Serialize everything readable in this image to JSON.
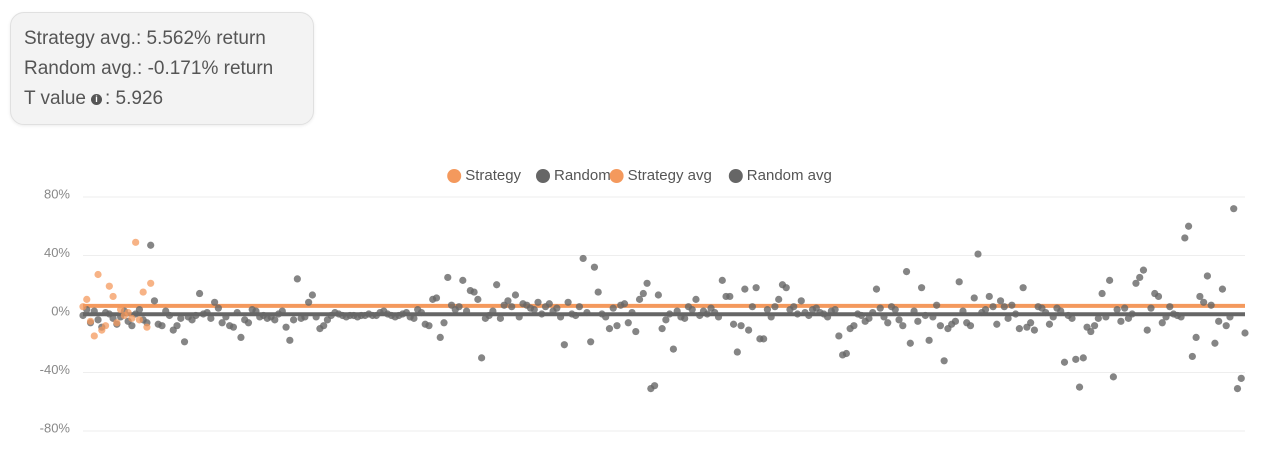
{
  "summary": {
    "strategy_avg": "Strategy avg.: 5.562% return",
    "random_avg": "Random avg.: -0.171% return",
    "t_value_label": "T value",
    "t_value": ": 5.926"
  },
  "chart_data": {
    "type": "scatter",
    "ylim": [
      -80,
      80
    ],
    "yticks": [
      {
        "value": -80,
        "label": "-80%"
      },
      {
        "value": -40,
        "label": "-40%"
      },
      {
        "value": 0,
        "label": "0%"
      },
      {
        "value": 40,
        "label": "40%"
      },
      {
        "value": 80,
        "label": "80%"
      }
    ],
    "grid": true,
    "legend": "top",
    "series": [
      {
        "name": "Strategy",
        "color": "#f4995d",
        "values": [
          5,
          10,
          -5,
          -15,
          27,
          -11,
          -8,
          19,
          12,
          -6,
          3,
          -1,
          1,
          -3,
          49,
          -4,
          15,
          -9,
          21
        ]
      },
      {
        "name": "Random",
        "color": "#666666",
        "values": [
          -1,
          3,
          -6,
          2,
          -4,
          -9,
          1,
          0,
          -3,
          -7,
          -2,
          2,
          -5,
          -8,
          0,
          3,
          -4,
          -6,
          47,
          9,
          -7,
          -8,
          2,
          -1,
          -11,
          -8,
          -3,
          -19,
          -2,
          -4,
          -1,
          14,
          0,
          1,
          -3,
          8,
          4,
          -6,
          -2,
          -8,
          -9,
          1,
          -16,
          -4,
          -6,
          3,
          2,
          -2,
          -1,
          -3,
          -2,
          -4,
          0,
          2,
          -9,
          -18,
          -4,
          24,
          -3,
          -2,
          8,
          13,
          -2,
          -10,
          -8,
          -4,
          -1,
          1,
          0,
          -1,
          -2,
          -1,
          -1,
          -2,
          -1,
          -1,
          0,
          -1,
          -1,
          1,
          2,
          0,
          -1,
          -2,
          -1,
          0,
          1,
          -2,
          -3,
          3,
          1,
          -7,
          -8,
          10,
          11,
          -16,
          -6,
          25,
          6,
          3,
          5,
          23,
          2,
          16,
          15,
          10,
          -30,
          -3,
          -1,
          2,
          20,
          -3,
          6,
          9,
          5,
          13,
          -2,
          7,
          6,
          4,
          3,
          8,
          0,
          5,
          7,
          2,
          4,
          -2,
          -21,
          8,
          0,
          -1,
          5,
          38,
          1,
          -19,
          32,
          15,
          0,
          -2,
          -10,
          4,
          -8,
          6,
          7,
          -6,
          1,
          -12,
          10,
          14,
          21,
          -51,
          -49,
          13,
          -10,
          -4,
          0,
          -24,
          2,
          -2,
          -3,
          5,
          3,
          10,
          -1,
          2,
          0,
          4,
          1,
          -2,
          23,
          12,
          12,
          -7,
          -26,
          -8,
          17,
          -11,
          5,
          18,
          -17,
          -17,
          3,
          -2,
          5,
          10,
          20,
          18,
          3,
          5,
          0,
          9,
          1,
          -1,
          3,
          4,
          1,
          0,
          -2,
          2,
          3,
          -15,
          -28,
          -27,
          -10,
          -8,
          0,
          -1,
          -5,
          -3,
          1,
          17,
          4,
          -2,
          -6,
          5,
          3,
          -4,
          -8,
          29,
          -20,
          2,
          -5,
          18,
          -1,
          -18,
          -2,
          6,
          -8,
          -32,
          -10,
          -7,
          -5,
          22,
          2,
          -6,
          -8,
          11,
          41,
          1,
          3,
          12,
          5,
          -7,
          9,
          5,
          -3,
          6,
          0,
          -10,
          18,
          -9,
          -6,
          -11,
          5,
          4,
          1,
          -7,
          -2,
          4,
          2,
          -33,
          -1,
          -3,
          -31,
          -50,
          -30,
          -9,
          -12,
          -8,
          -3,
          14,
          -2,
          23,
          -43,
          3,
          -5,
          4,
          -3,
          0,
          21,
          25,
          30,
          -11,
          4,
          14,
          12,
          -6,
          -2,
          5,
          0,
          -1,
          -2,
          52,
          60,
          -29,
          -16,
          12,
          8,
          26,
          6,
          -20,
          -5,
          17,
          -8,
          -2,
          72,
          -51,
          -44,
          -13
        ]
      },
      {
        "name": "Strategy avg",
        "color": "#f4995d",
        "value": 5.562
      },
      {
        "name": "Random avg",
        "color": "#666666",
        "value": -0.171
      }
    ]
  }
}
